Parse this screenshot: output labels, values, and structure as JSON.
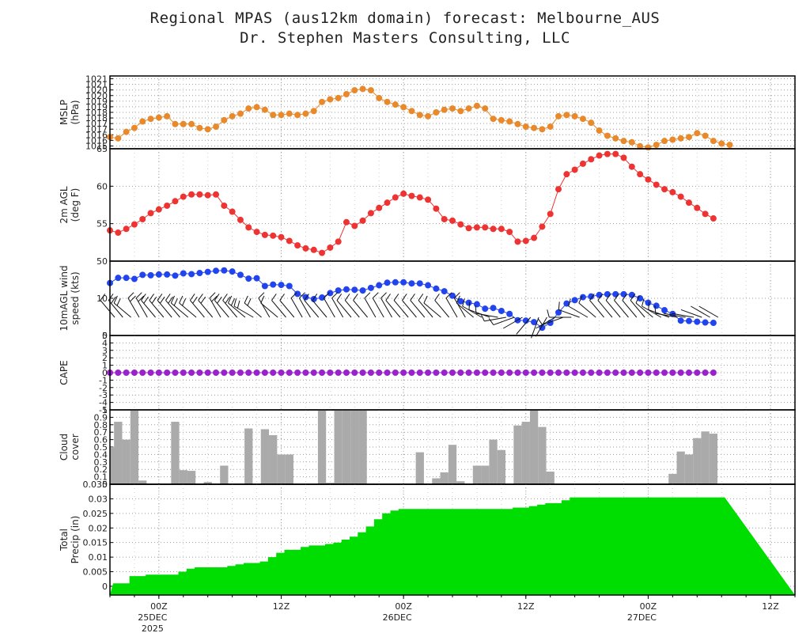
{
  "header": {
    "title_line1": "Regional MPAS (aus12km domain) forecast: Melbourne_AUS",
    "title_line2": "Dr. Stephen Masters Consulting, LLC"
  },
  "colors": {
    "mslp": "#e8892c",
    "temp": "#ee3333",
    "wind": "#2244ee",
    "cape": "#9922cc",
    "cloud": "#aaaaaa",
    "precip": "#00dd00",
    "grid": "#9a9a9a"
  },
  "chart_data": {
    "type": "meteogram",
    "time_axis": {
      "start_hours": -6,
      "end_hours": 78,
      "step_hours": 1,
      "ticks": [
        {
          "hour": 0,
          "label": "00Z",
          "sub1": "25DEC",
          "sub2": "2025"
        },
        {
          "hour": 15,
          "label": "12Z",
          "sub1": "",
          "sub2": ""
        },
        {
          "hour": 30,
          "label": "00Z",
          "sub1": "26DEC",
          "sub2": ""
        },
        {
          "hour": 45,
          "label": "12Z",
          "sub1": "",
          "sub2": ""
        },
        {
          "hour": 60,
          "label": "00Z",
          "sub1": "27DEC",
          "sub2": ""
        },
        {
          "hour": 75,
          "label": "12Z",
          "sub1": "",
          "sub2": ""
        }
      ]
    },
    "panels": [
      {
        "id": "mslp",
        "type": "line",
        "ylabel": [
          "MSLP",
          "(hPa)"
        ],
        "ylim": [
          1015.4,
          1021
        ],
        "ticks": [
          "1015",
          "1016",
          "1016",
          "1017",
          "1017",
          "1018",
          "1018",
          "1019",
          "1019",
          "1020",
          "1020",
          "1021",
          "1021"
        ],
        "values": [
          1016.3,
          1016.2,
          1016.7,
          1017.0,
          1017.5,
          1017.7,
          1017.8,
          1017.9,
          1017.3,
          1017.3,
          1017.3,
          1017.0,
          1016.9,
          1017.1,
          1017.6,
          1017.9,
          1018.1,
          1018.5,
          1018.6,
          1018.4,
          1018.0,
          1018.0,
          1018.1,
          1018.0,
          1018.1,
          1018.3,
          1019.0,
          1019.2,
          1019.3,
          1019.6,
          1019.9,
          1020.0,
          1019.9,
          1019.3,
          1019.0,
          1018.8,
          1018.6,
          1018.3,
          1018.0,
          1017.9,
          1018.2,
          1018.4,
          1018.5,
          1018.3,
          1018.5,
          1018.7,
          1018.5,
          1017.7,
          1017.6,
          1017.5,
          1017.3,
          1017.1,
          1017.0,
          1016.9,
          1017.1,
          1017.9,
          1018.0,
          1017.9,
          1017.7,
          1017.4,
          1016.8,
          1016.4,
          1016.2,
          1016.0,
          1015.9,
          1015.6,
          1015.5,
          1015.7,
          1016.0,
          1016.1,
          1016.2,
          1016.3,
          1016.6,
          1016.4,
          1016.0,
          1015.8,
          1015.7
        ]
      },
      {
        "id": "temp",
        "type": "line",
        "ylabel": [
          "2m AGL",
          "(deg F)"
        ],
        "ylim": [
          50,
          65
        ],
        "ticks": [
          "50",
          "55",
          "60",
          "65"
        ],
        "values": [
          54.1,
          53.8,
          54.3,
          54.9,
          55.6,
          56.4,
          56.9,
          57.4,
          58.0,
          58.6,
          58.9,
          58.9,
          58.8,
          58.9,
          57.4,
          56.6,
          55.5,
          54.5,
          53.9,
          53.5,
          53.4,
          53.2,
          52.7,
          52.1,
          51.7,
          51.5,
          51.1,
          51.8,
          52.6,
          55.2,
          54.7,
          55.4,
          56.4,
          57.1,
          57.8,
          58.5,
          59.0,
          58.7,
          58.5,
          58.2,
          57.0,
          55.6,
          55.4,
          54.9,
          54.4,
          54.5,
          54.5,
          54.3,
          54.3,
          53.9,
          52.6,
          52.7,
          53.1,
          54.6,
          56.3,
          59.6,
          61.6,
          62.2,
          63.0,
          63.6,
          64.1,
          64.3,
          64.3,
          63.8,
          62.6,
          61.6,
          60.9,
          60.2,
          59.6,
          59.2,
          58.6,
          57.8,
          57.1,
          56.3,
          55.7
        ]
      },
      {
        "id": "wind",
        "type": "line",
        "ylabel": [
          "10mAGL wind",
          "speed (kts)"
        ],
        "ylim": [
          0,
          20
        ],
        "ticks": [
          "0",
          "10"
        ],
        "values": [
          14.1,
          15.5,
          15.5,
          15.2,
          16.3,
          16.2,
          16.4,
          16.4,
          16.1,
          16.7,
          16.5,
          16.8,
          17.1,
          17.4,
          17.5,
          17.2,
          16.3,
          15.3,
          15.4,
          13.3,
          13.7,
          13.6,
          13.3,
          11.2,
          10.3,
          9.8,
          10.2,
          11.4,
          12.1,
          12.4,
          12.3,
          12.1,
          12.8,
          13.5,
          14.2,
          14.3,
          14.3,
          14.0,
          14.0,
          13.5,
          12.6,
          11.9,
          10.7,
          9.2,
          8.8,
          8.4,
          7.2,
          7.4,
          6.6,
          5.8,
          4.1,
          4.0,
          3.6,
          2.1,
          3.4,
          6.2,
          8.6,
          9.5,
          10.3,
          10.5,
          10.9,
          11.1,
          11.1,
          11.1,
          10.9,
          10.0,
          8.8,
          8.0,
          6.8,
          5.8,
          4.0,
          3.9,
          3.7,
          3.5,
          3.4
        ]
      },
      {
        "id": "cape",
        "type": "line",
        "ylabel": [
          "CAPE",
          ""
        ],
        "ylim": [
          -5,
          5
        ],
        "ticks": [
          "-5",
          "-4",
          "-3",
          "-2",
          "-1",
          "0",
          "1",
          "2",
          "3",
          "4",
          "5"
        ],
        "values": [
          0
        ]
      },
      {
        "id": "cloud",
        "type": "bar",
        "ylabel": [
          "Cloud",
          "cover"
        ],
        "ylim": [
          0,
          1
        ],
        "ticks": [
          "0",
          "0.1",
          "0.2",
          "0.3",
          "0.4",
          "0.5",
          "0.6",
          "0.7",
          "0.8",
          "0.9",
          "1"
        ],
        "values": [
          0.5,
          0.84,
          0.6,
          1.0,
          0.05,
          0.0,
          0.0,
          0.0,
          0.84,
          0.19,
          0.18,
          0.0,
          0.03,
          0.0,
          0.25,
          0.0,
          0.0,
          0.75,
          0.0,
          0.74,
          0.66,
          0.4,
          0.4,
          0.0,
          0.0,
          0.0,
          1.0,
          0.02,
          1.0,
          1.0,
          1.0,
          1.0,
          0.0,
          0.0,
          0.0,
          0.0,
          0.0,
          0.0,
          0.43,
          0.0,
          0.08,
          0.16,
          0.53,
          0.04,
          0.0,
          0.25,
          0.25,
          0.6,
          0.46,
          0.0,
          0.79,
          0.84,
          0.99,
          0.77,
          0.17,
          0.0,
          0.0,
          0.0,
          0.0,
          0.0,
          0.0,
          0.0,
          0.0,
          0.0,
          0.0,
          0.0,
          0.0,
          0.0,
          0.0,
          0.14,
          0.44,
          0.4,
          0.62,
          0.71,
          0.68
        ]
      },
      {
        "id": "precip",
        "type": "area-step",
        "ylabel": [
          "Total",
          "Precip (in)"
        ],
        "ylim": [
          -0.003,
          0.035
        ],
        "ticks": [
          "0",
          "0.005",
          "0.01",
          "0.015",
          "0.02",
          "0.025",
          "0.03",
          "0.035"
        ],
        "values": [
          0.001,
          0.001,
          0.0035,
          0.0035,
          0.004,
          0.004,
          0.004,
          0.004,
          0.005,
          0.006,
          0.0065,
          0.0065,
          0.0065,
          0.0065,
          0.007,
          0.0075,
          0.008,
          0.008,
          0.0085,
          0.01,
          0.0115,
          0.0125,
          0.0125,
          0.0135,
          0.014,
          0.014,
          0.0145,
          0.015,
          0.016,
          0.017,
          0.0185,
          0.0205,
          0.023,
          0.025,
          0.026,
          0.0265,
          0.0265,
          0.0265,
          0.0265,
          0.0265,
          0.0265,
          0.0265,
          0.0265,
          0.0265,
          0.0265,
          0.0265,
          0.0265,
          0.0265,
          0.0265,
          0.027,
          0.027,
          0.0275,
          0.028,
          0.0285,
          0.0285,
          0.0295,
          0.0305,
          0.0305,
          0.0305,
          0.0305,
          0.0305,
          0.0305,
          0.0305,
          0.0305,
          0.0305,
          0.0305,
          0.0305,
          0.0305,
          0.0305,
          0.0305,
          0.0305,
          0.0305,
          0.0305,
          0.0305,
          0.0305
        ]
      }
    ],
    "wind_barbs": {
      "start_hour": -6,
      "step_hours": 1,
      "directions_deg": [
        320,
        320,
        310,
        330,
        330,
        320,
        320,
        320,
        320,
        310,
        310,
        320,
        320,
        330,
        320,
        320,
        310,
        300,
        310,
        330,
        310,
        320,
        320,
        330,
        330,
        320,
        320,
        330,
        330,
        320,
        320,
        320,
        330,
        330,
        330,
        320,
        320,
        320,
        320,
        320,
        310,
        320,
        330,
        330,
        310,
        300,
        290,
        280,
        260,
        250,
        240,
        220,
        200,
        210,
        240,
        250,
        270,
        290,
        300,
        310,
        320,
        320,
        320,
        320,
        320,
        320,
        310,
        300,
        290,
        280,
        280,
        280,
        290,
        300,
        300
      ],
      "speeds_kts": [
        14,
        15,
        15,
        15,
        16,
        16,
        16,
        16,
        16,
        17,
        16,
        17,
        17,
        17,
        17,
        17,
        16,
        15,
        15,
        13,
        14,
        14,
        13,
        11,
        10,
        10,
        10,
        11,
        12,
        12,
        12,
        12,
        13,
        13,
        14,
        14,
        14,
        14,
        14,
        13,
        13,
        12,
        11,
        9,
        9,
        8,
        7,
        7,
        7,
        6,
        4,
        4,
        4,
        2,
        3,
        6,
        9,
        10,
        10,
        10,
        11,
        11,
        11,
        11,
        11,
        10,
        9,
        8,
        7,
        6,
        4,
        4,
        4,
        3,
        3
      ]
    }
  }
}
